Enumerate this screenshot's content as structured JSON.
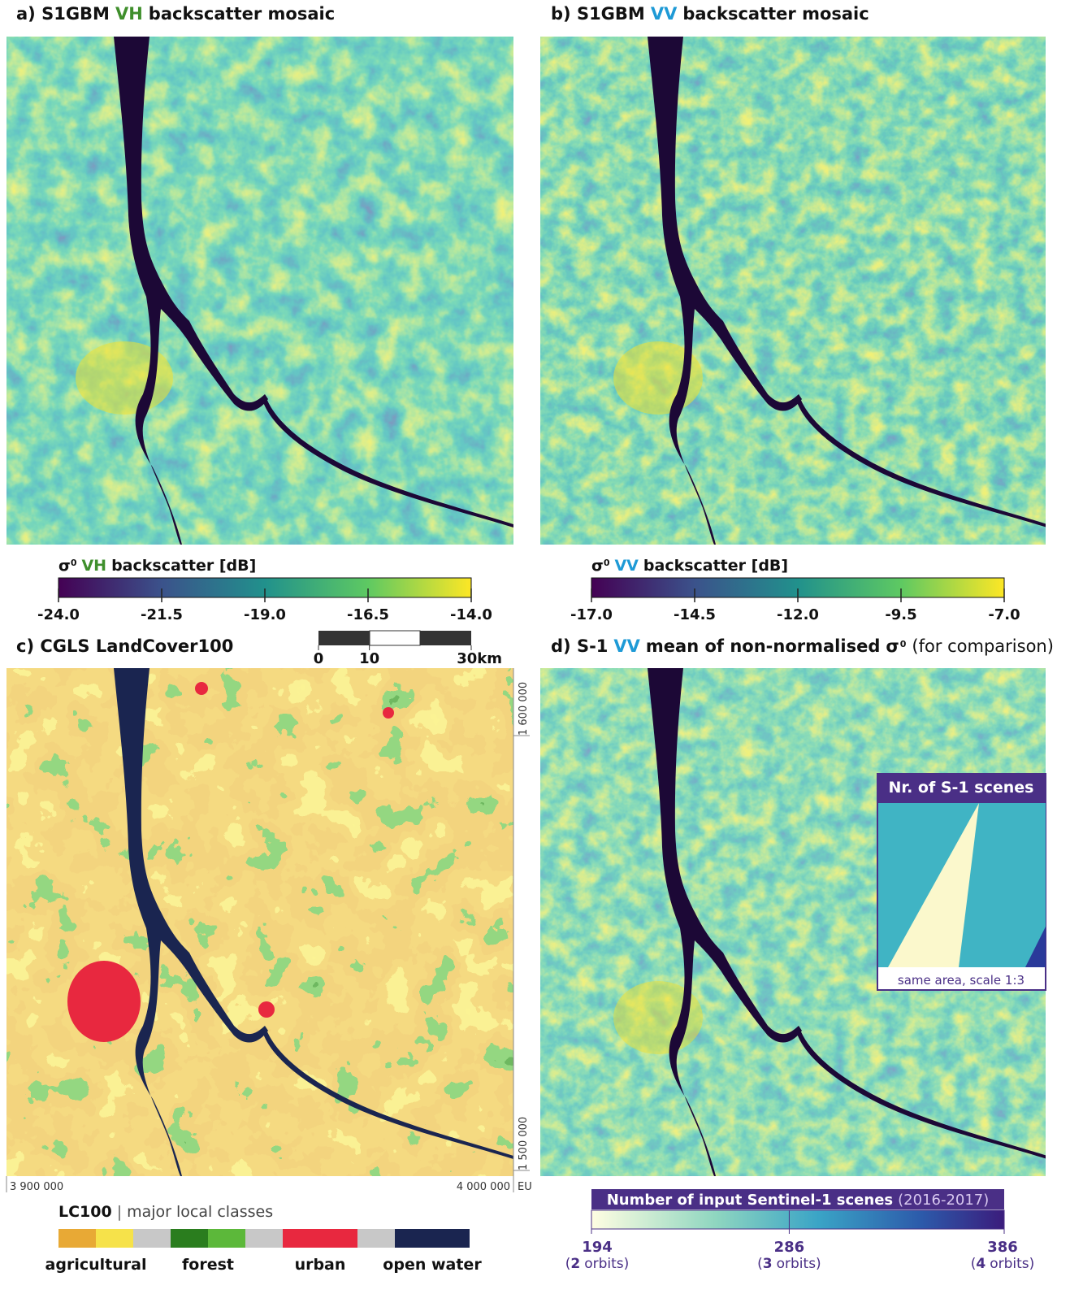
{
  "panels": [
    {
      "title": {
        "prefix": "a) S1GBM",
        "pol": "VH",
        "suffix": "backscatter mosaic"
      },
      "colorbar": {
        "symbol": "σ",
        "superscript": "0",
        "pol": "VH",
        "label": "backscatter [dB]",
        "lim": [
          -24,
          -14
        ],
        "ticks": [
          {
            "value": -24,
            "label": "-24.0"
          },
          {
            "value": -21.5,
            "label": "-21.5"
          },
          {
            "value": -19,
            "label": "-19.0"
          },
          {
            "value": -16.5,
            "label": "-16.5"
          },
          {
            "value": -14,
            "label": "-14.0"
          }
        ]
      }
    },
    {
      "title": {
        "prefix": "b) S1GBM",
        "pol": "VV",
        "suffix": "backscatter mosaic"
      },
      "colorbar": {
        "symbol": "σ",
        "superscript": "0",
        "pol": "VV",
        "label": "backscatter [dB]",
        "lim": [
          -17,
          -7
        ],
        "ticks": [
          {
            "value": -17,
            "label": "-17.0"
          },
          {
            "value": -14.5,
            "label": "-14.5"
          },
          {
            "value": -12,
            "label": "-12.0"
          },
          {
            "value": -9.5,
            "label": "-9.5"
          },
          {
            "value": -7,
            "label": "-7.0"
          }
        ]
      }
    },
    {
      "title": {
        "prefix": "c) CGLS LandCover100"
      }
    },
    {
      "title": {
        "prefix": "d) S-1",
        "pol": "VV",
        "suffix": "mean of non-normalised",
        "symbol": "σ",
        "superscript": "0",
        "note": "(for comparison)"
      },
      "inset": {
        "title": "Nr. of S-1 scenes",
        "caption": "same area, scale 1:3"
      },
      "colorbar": {
        "title": "Number of input Sentinel-1 scenes",
        "period": "(2016-2017)",
        "lim": [
          194,
          386
        ],
        "orbits_open": "(",
        "orbits_close": "orbits)",
        "ticks": [
          {
            "value": 194,
            "orbits": 2
          },
          {
            "value": 286,
            "orbits": 3
          },
          {
            "value": 386,
            "orbits": 4
          }
        ]
      }
    }
  ],
  "scale_bar": {
    "lim": [
      0,
      30
    ],
    "ticks": [
      0,
      10,
      {
        "value": 30,
        "label": "30km"
      }
    ]
  },
  "coordinates": {
    "x": [
      {
        "value": 3900000,
        "label": "3 900 000"
      },
      {
        "value": 4000000,
        "label": "4 000 000"
      }
    ],
    "x_unit": "EU",
    "y": [
      {
        "value": 1600000,
        "label": "1 600 000"
      },
      {
        "value": 1500000,
        "label": "1 500 000"
      }
    ]
  },
  "legend": {
    "title": "LC100",
    "separator": "|",
    "subtitle": "major local classes",
    "classes": [
      {
        "name": "agricultural",
        "colors": [
          "#e8a935",
          "#f6e24a"
        ]
      },
      {
        "name": "forest",
        "colors": [
          "#2a7d1e",
          "#5cb83a"
        ]
      },
      {
        "name": "urban",
        "colors": [
          "#e8283f"
        ]
      },
      {
        "name": "open water",
        "colors": [
          "#1a2550"
        ]
      }
    ]
  }
}
